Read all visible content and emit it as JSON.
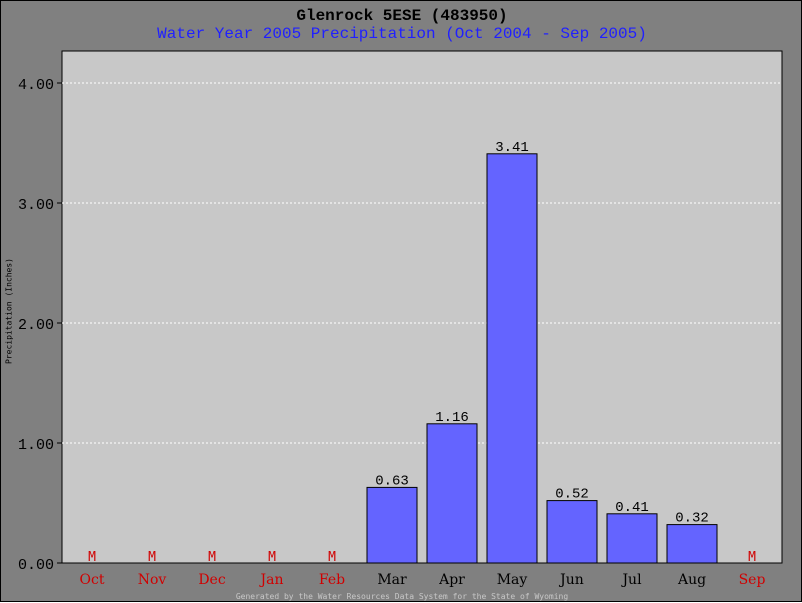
{
  "chart_data": {
    "type": "bar",
    "title": "Glenrock 5ESE (483950)",
    "subtitle": "Water Year 2005 Precipitation (Oct 2004 - Sep 2005)",
    "ylabel": "Precipitation (Inches)",
    "xlabel": "",
    "ylim": [
      0,
      4.0
    ],
    "yticks": [
      "0.00",
      "1.00",
      "2.00",
      "3.00",
      "4.00"
    ],
    "grid": true,
    "categories": [
      "Oct",
      "Nov",
      "Dec",
      "Jan",
      "Feb",
      "Mar",
      "Apr",
      "May",
      "Jun",
      "Jul",
      "Aug",
      "Sep"
    ],
    "values": [
      null,
      null,
      null,
      null,
      null,
      0.63,
      1.16,
      3.41,
      0.52,
      0.41,
      0.32,
      null
    ],
    "value_labels": [
      "M",
      "M",
      "M",
      "M",
      "M",
      "0.63",
      "1.16",
      "3.41",
      "0.52",
      "0.41",
      "0.32",
      "M"
    ],
    "colors": {
      "bar": "#6464ff",
      "missing": "#d00000",
      "plot_bg": "#c8c8c8",
      "frame_bg": "#808080",
      "grid": "#ffffff"
    }
  },
  "footer": "Generated by the Water Resources Data System for the State of Wyoming"
}
